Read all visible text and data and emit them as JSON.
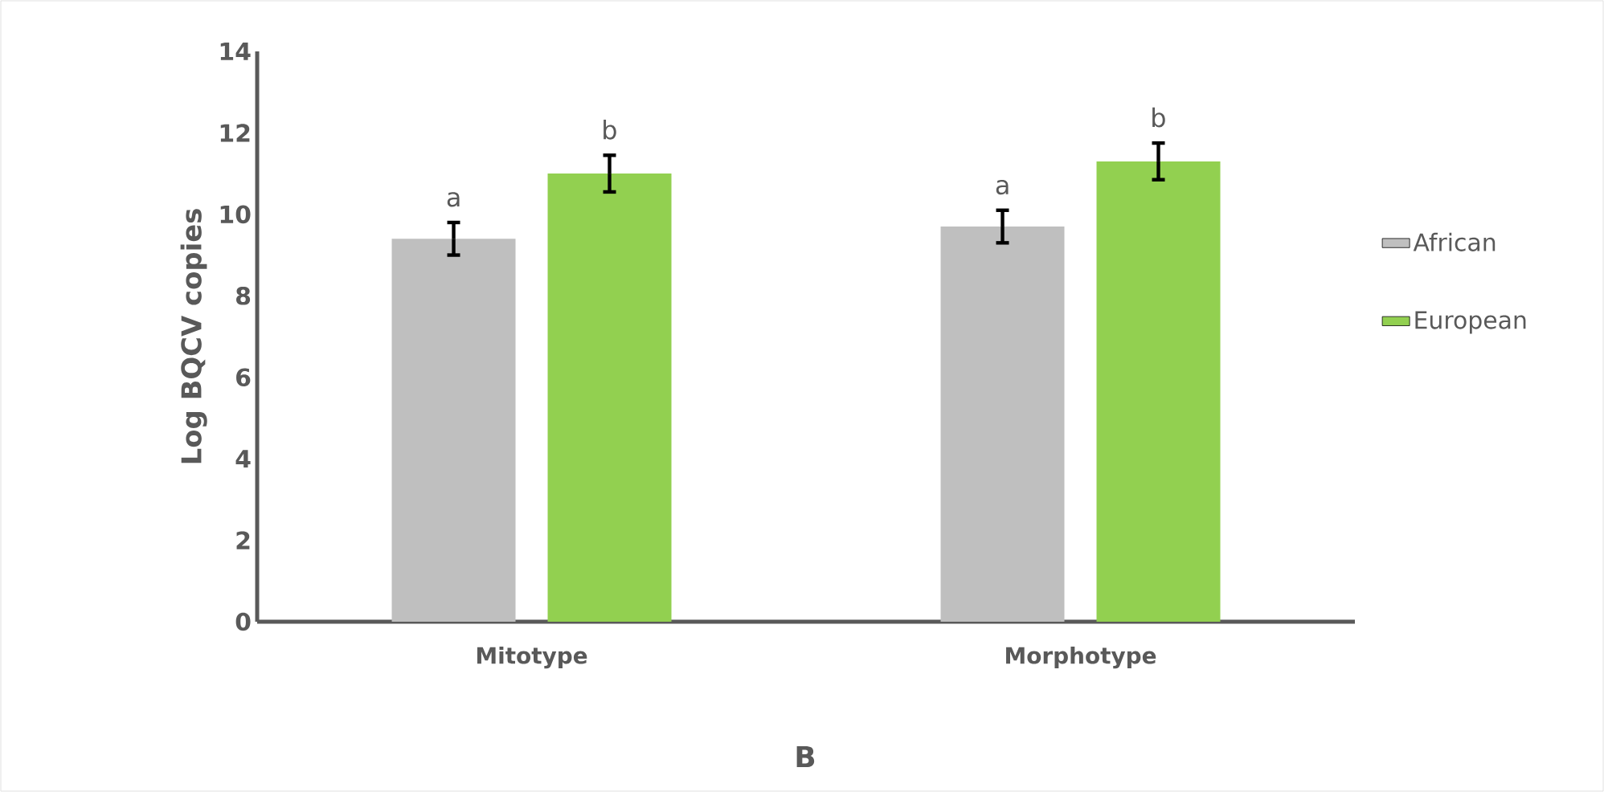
{
  "chart_data": {
    "type": "bar",
    "ylabel": "Log BQCV copies",
    "categories": [
      "Mitotype",
      "Morphotype"
    ],
    "series": [
      {
        "name": "African",
        "color": "#bfbfbf",
        "values": [
          9.4,
          9.7
        ],
        "errors": [
          0.4,
          0.4
        ]
      },
      {
        "name": "European",
        "color": "#92d050",
        "values": [
          11.0,
          11.3
        ],
        "errors": [
          0.45,
          0.45
        ]
      }
    ],
    "ylim": [
      0,
      14
    ],
    "yticks": [
      0,
      2,
      4,
      6,
      8,
      10,
      12,
      14
    ],
    "grid": false,
    "legend": "right",
    "annotations": [
      "a",
      "b",
      "a",
      "b",
      "B"
    ]
  }
}
